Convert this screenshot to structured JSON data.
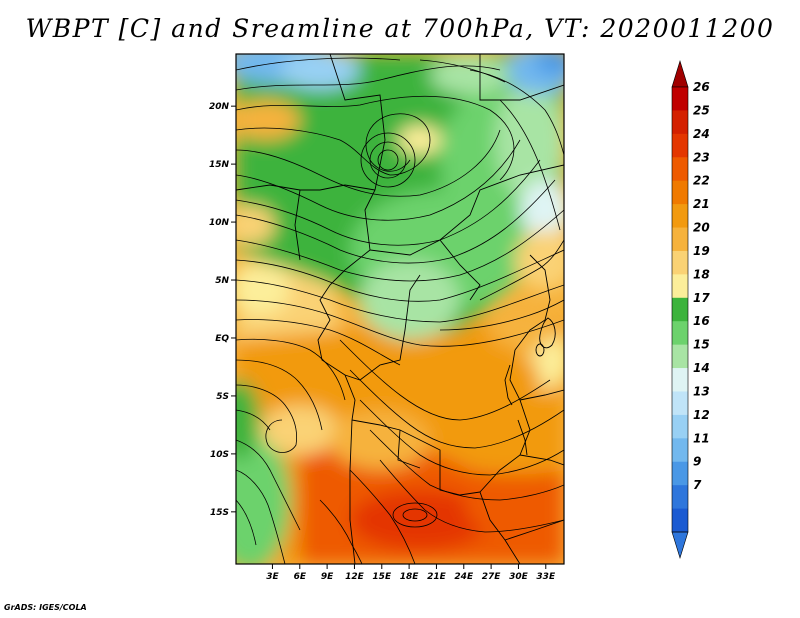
{
  "title": "WBPT [C] and Sreamline at 700hPa, VT: 2020011200",
  "credit": "GrADS: IGES/COLA",
  "map": {
    "variable": "WBPT",
    "units": "C",
    "level": "700hPa",
    "valid_time": "2020011200",
    "lon_range": [
      -1,
      35
    ],
    "lat_range": [
      -19.5,
      24.5
    ],
    "lat_labels": [
      "20N",
      "15N",
      "10N",
      "5N",
      "EQ",
      "5S",
      "10S",
      "15S"
    ],
    "lat_values": [
      20,
      15,
      10,
      5,
      0,
      -5,
      -10,
      -15
    ],
    "lon_labels": [
      "3E",
      "6E",
      "9E",
      "12E",
      "15E",
      "18E",
      "21E",
      "24E",
      "27E",
      "30E",
      "33E"
    ],
    "lon_values": [
      3,
      6,
      9,
      12,
      15,
      18,
      21,
      24,
      27,
      30,
      33
    ]
  },
  "colorbar": {
    "labels": [
      "26",
      "25",
      "24",
      "23",
      "22",
      "21",
      "20",
      "19",
      "18",
      "17",
      "16",
      "15",
      "14",
      "13",
      "12",
      "11",
      "9",
      "7"
    ],
    "colors": [
      "#c00000",
      "#d42000",
      "#e43600",
      "#ee5a00",
      "#f07a00",
      "#f29a10",
      "#f6b23c",
      "#fad274",
      "#fcee9a",
      "#3cb33c",
      "#6cd26c",
      "#a8e4a4",
      "#dff4f4",
      "#c0e4f8",
      "#98d0f4",
      "#72b8ee",
      "#4a98e6",
      "#2e76dc",
      "#1a5ad2"
    ],
    "top_arrow_color": "#a00000",
    "bottom_arrow_color": "#2e76dc"
  }
}
